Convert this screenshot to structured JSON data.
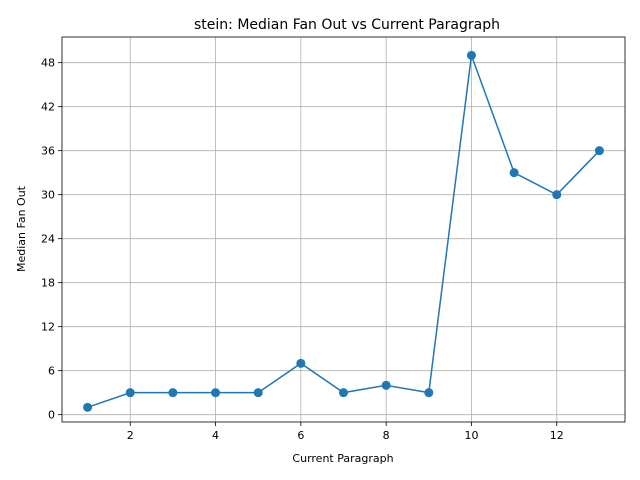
{
  "chart_data": {
    "type": "line",
    "title": "stein: Median Fan Out vs Current Paragraph",
    "xlabel": "Current Paragraph",
    "ylabel": "Median Fan Out",
    "xlim": [
      0.4,
      13.6
    ],
    "ylim": [
      -1.0,
      51.5
    ],
    "xticks": [
      2,
      4,
      6,
      8,
      10,
      12
    ],
    "yticks": [
      0,
      6,
      12,
      18,
      24,
      30,
      36,
      42,
      48
    ],
    "grid": true,
    "color": "#1f77b4",
    "marker": "circle",
    "x": [
      1,
      2,
      3,
      4,
      5,
      6,
      7,
      8,
      9,
      10,
      11,
      12,
      13
    ],
    "y": [
      1,
      3,
      3,
      3,
      3,
      7,
      3,
      4,
      3,
      49,
      33,
      30,
      36
    ]
  }
}
